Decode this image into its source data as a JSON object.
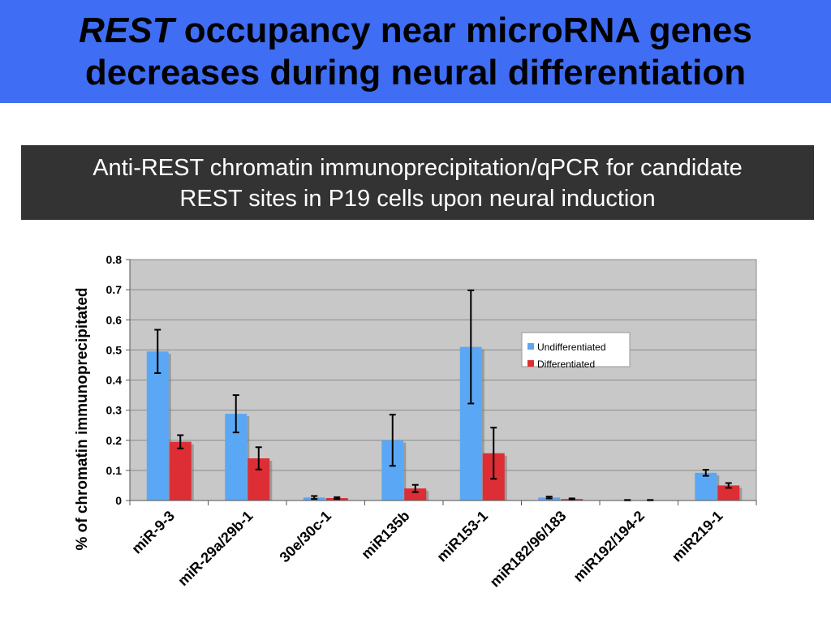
{
  "slide": {
    "title_em": "REST",
    "title_rest1": "occupancy near microRNA genes",
    "title_line2": "decreases during neural differentiation",
    "subtitle_line1": "Anti-REST chromatin immunoprecipitation/qPCR for candidate",
    "subtitle_line2": "REST sites in P19 cells upon neural induction"
  },
  "colors": {
    "title_bar": "#3f6ef5",
    "undifferentiated": "#5aa8f5",
    "differentiated": "#dd2e35",
    "plot_bg": "#c8c8c8"
  },
  "chart_data": {
    "type": "bar",
    "title": "",
    "xlabel": "",
    "ylabel": "% of chromatin immunoprecipitated",
    "ylim": [
      0,
      0.8
    ],
    "yticks": [
      0,
      0.1,
      0.2,
      0.3,
      0.4,
      0.5,
      0.6,
      0.7,
      0.8
    ],
    "ytick_labels": [
      "0",
      "0.1",
      "0.2",
      "0.3",
      "0.4",
      "0.5",
      "0.6",
      "0.7",
      "0.8"
    ],
    "grid": true,
    "legend_position": "right",
    "categories": [
      "miR-9-3",
      "miR-29a/29b-1",
      "30e/30c-1",
      "miR135b",
      "miR153-1",
      "miR182/96/183",
      "miR192/194-2",
      "miR219-1"
    ],
    "series": [
      {
        "name": "Undifferentiated",
        "values": [
          0.495,
          0.288,
          0.01,
          0.2,
          0.51,
          0.01,
          0.001,
          0.092
        ],
        "errors": [
          0.072,
          0.062,
          0.005,
          0.085,
          0.188,
          0.003,
          0.001,
          0.01
        ]
      },
      {
        "name": "Differentiated",
        "values": [
          0.195,
          0.14,
          0.008,
          0.04,
          0.157,
          0.005,
          0.001,
          0.05
        ]
      }
    ],
    "error_bars_differentiated": [
      0.022,
      0.037,
      0.003,
      0.012,
      0.085,
      0.002,
      0.001,
      0.008
    ]
  }
}
